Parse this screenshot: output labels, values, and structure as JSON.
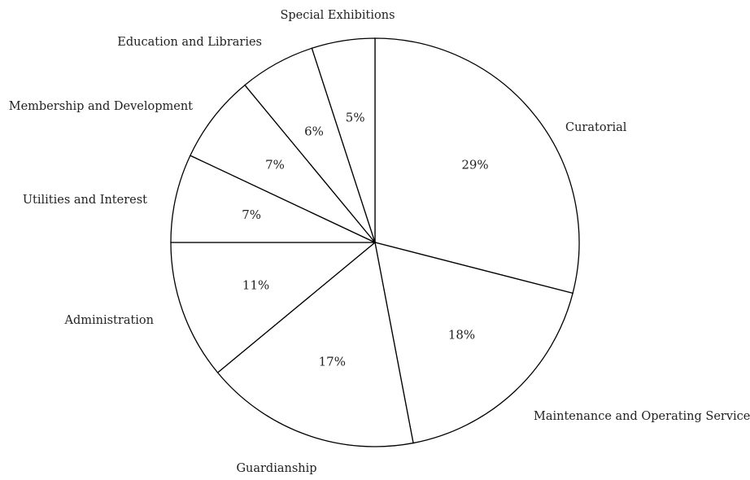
{
  "chart_data": {
    "type": "pie",
    "start": "12 o'clock",
    "direction": "clockwise",
    "slices": [
      {
        "label": "Curatorial",
        "value": 29,
        "value_label": "29%"
      },
      {
        "label": "Maintenance and Operating Services",
        "value": 18,
        "value_label": "18%"
      },
      {
        "label": "Guardianship",
        "value": 17,
        "value_label": "17%"
      },
      {
        "label": "Administration",
        "value": 11,
        "value_label": "11%"
      },
      {
        "label": "Utilities and Interest",
        "value": 7,
        "value_label": "7%"
      },
      {
        "label": "Membership and Development",
        "value": 7,
        "value_label": "7%"
      },
      {
        "label": "Education and Libraries",
        "value": 6,
        "value_label": "6%"
      },
      {
        "label": "Special Exhibitions",
        "value": 5,
        "value_label": "5%"
      }
    ],
    "colors": {
      "fill": "#ffffff",
      "stroke": "#000000",
      "text": "#222222"
    }
  }
}
